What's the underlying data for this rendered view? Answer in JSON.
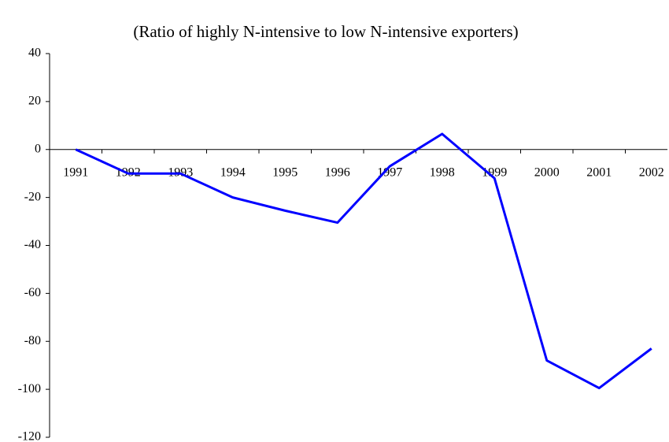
{
  "chart_data": {
    "type": "line",
    "title": "(Ratio of highly N-intensive to low N-intensive exporters)",
    "categories": [
      "1991",
      "1992",
      "1993",
      "1994",
      "1995",
      "1996",
      "1997",
      "1998",
      "1999",
      "2000",
      "2001",
      "2002"
    ],
    "series": [
      {
        "color": "#0000ff",
        "values": [
          0,
          -10,
          -10,
          -20,
          -25.5,
          -30.5,
          -7,
          6.5,
          -12,
          -88,
          -99.5,
          -83
        ]
      }
    ],
    "ylim": [
      -120,
      40
    ],
    "yticks": [
      -120,
      -100,
      -80,
      -60,
      -40,
      -20,
      0,
      20,
      40
    ]
  }
}
